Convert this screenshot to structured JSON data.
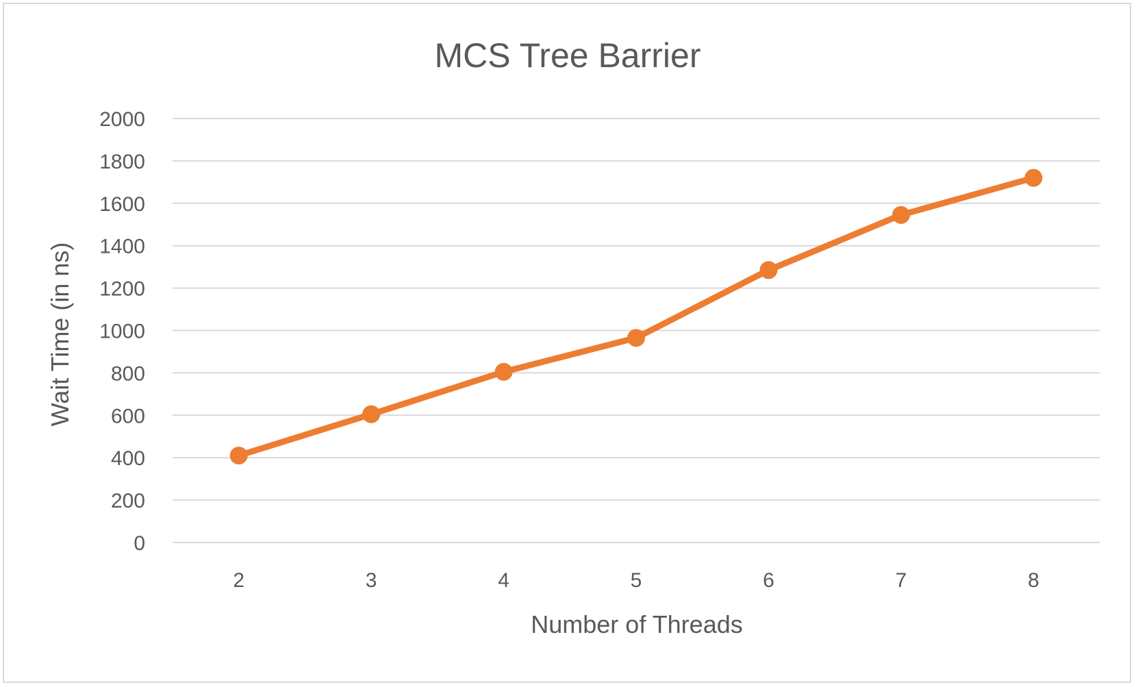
{
  "chart_data": {
    "type": "line",
    "title": "MCS Tree Barrier",
    "xlabel": "Number of Threads",
    "ylabel": "Wait Time (in ns)",
    "categories": [
      "2",
      "3",
      "4",
      "5",
      "6",
      "7",
      "8"
    ],
    "series": [
      {
        "values": [
          410,
          605,
          805,
          965,
          1285,
          1545,
          1720
        ],
        "color": "#ED7D31"
      }
    ],
    "yticks": [
      "0",
      "200",
      "400",
      "600",
      "800",
      "1000",
      "1200",
      "1400",
      "1600",
      "1800",
      "2000"
    ],
    "ylim": [
      0,
      2000
    ],
    "grid": true,
    "legend": "none",
    "colors": {
      "gridline": "#d9d9d9",
      "text": "#595959",
      "frame": "#d9d9d9"
    }
  }
}
